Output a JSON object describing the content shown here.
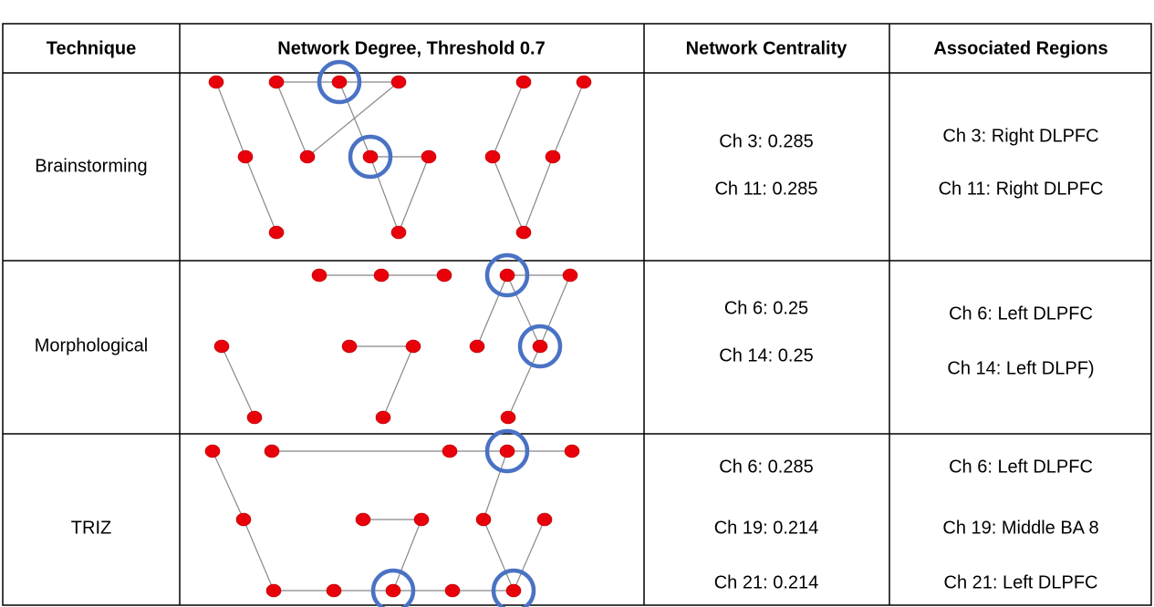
{
  "table": {
    "header": [
      "Technique",
      "Network Degree, Threshold 0.7",
      "Network Centrality",
      "Associated Regions"
    ],
    "rows": [
      {
        "technique": "Brainstorming",
        "centrality": [
          "Ch 3: 0.285",
          "Ch 11: 0.285"
        ],
        "regions": [
          "Ch 3: Right DLPFC",
          "Ch 11: Right DLPFC"
        ]
      },
      {
        "technique": "Morphological",
        "centrality": [
          "Ch 6: 0.25",
          "Ch 14: 0.25"
        ],
        "regions": [
          "Ch 6: Left DLPFC",
          "Ch 14: Left DLPF)"
        ]
      },
      {
        "technique": "TRIZ",
        "centrality": [
          "Ch 6: 0.285",
          "Ch 19: 0.214",
          "Ch 21: 0.214"
        ],
        "regions": [
          "Ch 6: Left DLPFC",
          "Ch 19: Middle BA 8",
          "Ch 21: Left DLPFC"
        ]
      }
    ]
  }
}
